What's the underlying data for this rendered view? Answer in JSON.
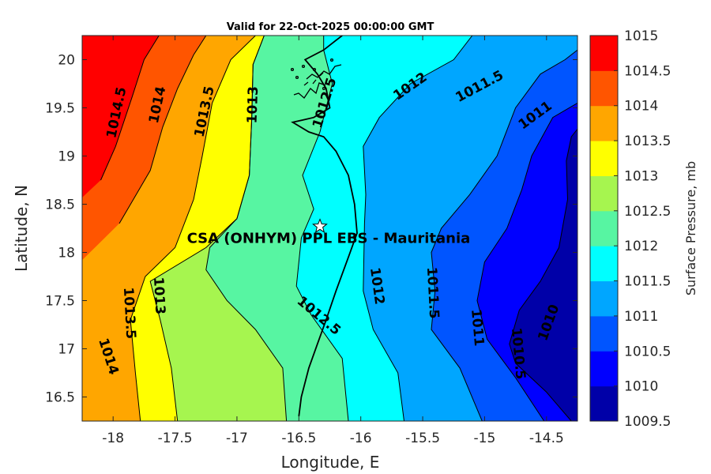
{
  "chart_data": {
    "type": "contourf",
    "title": "Valid for 22-Oct-2025 00:00:00 GMT",
    "xlabel": "Longitude, E",
    "ylabel": "Latitude, N",
    "xlim": [
      -18.25,
      -14.25
    ],
    "ylim": [
      16.25,
      20.25
    ],
    "xticks": [
      -18,
      -17.5,
      -17,
      -16.5,
      -16,
      -15.5,
      -15,
      -14.5
    ],
    "xtick_labels": [
      "-18",
      "-17.5",
      "-17",
      "-16.5",
      "-16",
      "-15.5",
      "-15",
      "-14.5"
    ],
    "yticks": [
      16.5,
      17,
      17.5,
      18,
      18.5,
      19,
      19.5,
      20
    ],
    "ytick_labels": [
      "16.5",
      "17",
      "17.5",
      "18",
      "18.5",
      "19",
      "19.5",
      "20"
    ],
    "colorbar": {
      "label": "Surface Pressure, mb",
      "levels": [
        1009.5,
        1010,
        1010.5,
        1011,
        1011.5,
        1012,
        1012.5,
        1013,
        1013.5,
        1014,
        1014.5,
        1015
      ],
      "tick_labels": [
        "1009.5",
        "1010",
        "1010.5",
        "1011",
        "1011.5",
        "1012",
        "1012.5",
        "1013",
        "1013.5",
        "1014",
        "1014.5",
        "1015"
      ],
      "colors": [
        "#0000a8",
        "#0000ff",
        "#0055ff",
        "#00a6ff",
        "#00ffff",
        "#57f5a2",
        "#a6f54f",
        "#ffff00",
        "#ffa600",
        "#ff5500",
        "#ff0000"
      ]
    },
    "contour_bands": [
      {
        "level": 1014.5,
        "color": "#ff0000",
        "boundary": [
          [
            -18.25,
            18.57
          ],
          [
            -18.1,
            18.75
          ],
          [
            -17.98,
            19.1
          ],
          [
            -17.85,
            19.6
          ],
          [
            -17.75,
            20.0
          ],
          [
            -17.63,
            20.25
          ],
          [
            -18.25,
            20.25
          ]
        ]
      },
      {
        "level": 1014,
        "color": "#ff5500",
        "boundary": [
          [
            -18.25,
            17.92
          ],
          [
            -17.95,
            18.3
          ],
          [
            -17.7,
            18.85
          ],
          [
            -17.6,
            19.3
          ],
          [
            -17.48,
            19.7
          ],
          [
            -17.35,
            20.05
          ],
          [
            -17.25,
            20.25
          ],
          [
            -18.25,
            20.25
          ]
        ]
      },
      {
        "level": 1013.5,
        "color": "#ffa600",
        "boundary": [
          [
            -17.78,
            16.25
          ],
          [
            -17.82,
            16.75
          ],
          [
            -17.86,
            17.3
          ],
          [
            -17.74,
            17.75
          ],
          [
            -17.5,
            18.05
          ],
          [
            -17.35,
            18.55
          ],
          [
            -17.28,
            19.0
          ],
          [
            -17.2,
            19.55
          ],
          [
            -17.05,
            20.0
          ],
          [
            -16.85,
            20.25
          ],
          [
            -18.25,
            20.25
          ],
          [
            -18.25,
            16.25
          ]
        ]
      },
      {
        "level": 1013,
        "color": "#ffff00",
        "boundary": [
          [
            -17.48,
            16.25
          ],
          [
            -17.53,
            16.8
          ],
          [
            -17.62,
            17.3
          ],
          [
            -17.7,
            17.7
          ],
          [
            -17.25,
            18.05
          ],
          [
            -17.0,
            18.35
          ],
          [
            -16.9,
            18.8
          ],
          [
            -16.88,
            19.4
          ],
          [
            -16.87,
            19.95
          ],
          [
            -16.78,
            20.25
          ],
          [
            -18.25,
            20.25
          ],
          [
            -18.25,
            16.25
          ]
        ]
      },
      {
        "level": 1012.5,
        "color": "#a6f54f",
        "boundary": [
          [
            -16.6,
            16.25
          ],
          [
            -16.63,
            16.8
          ],
          [
            -16.85,
            17.2
          ],
          [
            -17.08,
            17.5
          ],
          [
            -17.25,
            17.82
          ],
          [
            -17.22,
            18.05
          ],
          [
            -17.0,
            18.35
          ],
          [
            -16.9,
            18.8
          ],
          [
            -16.88,
            19.4
          ],
          [
            -16.87,
            19.95
          ],
          [
            -16.78,
            20.25
          ],
          [
            -18.25,
            20.25
          ],
          [
            -18.25,
            16.25
          ]
        ]
      },
      {
        "level": 1012,
        "color": "#57f5a2",
        "boundary": [
          [
            -16.1,
            16.25
          ],
          [
            -16.15,
            16.9
          ],
          [
            -16.4,
            17.35
          ],
          [
            -16.52,
            17.65
          ],
          [
            -16.48,
            18.15
          ],
          [
            -16.38,
            18.45
          ],
          [
            -16.47,
            18.8
          ],
          [
            -16.33,
            19.25
          ],
          [
            -16.23,
            19.75
          ],
          [
            -16.3,
            20.1
          ],
          [
            -16.3,
            20.25
          ],
          [
            -18.25,
            20.25
          ],
          [
            -18.25,
            16.25
          ]
        ]
      },
      {
        "level": 1011.5,
        "color": "#00ffff",
        "boundary": [
          [
            -15.65,
            16.25
          ],
          [
            -15.7,
            16.75
          ],
          [
            -15.9,
            17.2
          ],
          [
            -15.98,
            17.6
          ],
          [
            -15.97,
            18.3
          ],
          [
            -15.96,
            18.6
          ],
          [
            -15.98,
            19.1
          ],
          [
            -15.85,
            19.4
          ],
          [
            -15.6,
            19.75
          ],
          [
            -15.25,
            20.0
          ],
          [
            -15.1,
            20.25
          ],
          [
            -18.25,
            20.25
          ],
          [
            -18.25,
            16.25
          ]
        ]
      },
      {
        "level": 1011,
        "color": "#00a6ff",
        "boundary": [
          [
            -15.02,
            16.25
          ],
          [
            -15.2,
            16.8
          ],
          [
            -15.43,
            17.2
          ],
          [
            -15.4,
            17.6
          ],
          [
            -15.43,
            18.0
          ],
          [
            -15.35,
            18.25
          ],
          [
            -15.12,
            18.6
          ],
          [
            -14.9,
            19.0
          ],
          [
            -14.75,
            19.5
          ],
          [
            -14.55,
            19.85
          ],
          [
            -14.35,
            20.0
          ],
          [
            -14.25,
            20.1
          ],
          [
            -14.25,
            20.25
          ],
          [
            -18.25,
            20.25
          ],
          [
            -18.25,
            16.25
          ]
        ]
      },
      {
        "level": 1010.5,
        "color": "#0055ff",
        "boundary": [
          [
            -14.52,
            16.25
          ],
          [
            -14.75,
            16.7
          ],
          [
            -14.98,
            17.1
          ],
          [
            -15.06,
            17.5
          ],
          [
            -15.0,
            17.9
          ],
          [
            -14.82,
            18.25
          ],
          [
            -14.7,
            18.65
          ],
          [
            -14.62,
            19.0
          ],
          [
            -14.45,
            19.4
          ],
          [
            -14.25,
            19.55
          ],
          [
            -14.25,
            20.25
          ],
          [
            -18.25,
            20.25
          ],
          [
            -18.25,
            16.25
          ]
        ]
      },
      {
        "level": 1010,
        "color": "#0000ff",
        "boundary": [
          [
            -14.3,
            16.25
          ],
          [
            -14.5,
            16.55
          ],
          [
            -14.75,
            16.85
          ],
          [
            -14.8,
            17.05
          ],
          [
            -14.72,
            17.4
          ],
          [
            -14.55,
            17.7
          ],
          [
            -14.4,
            18.05
          ],
          [
            -14.33,
            18.55
          ],
          [
            -14.34,
            18.95
          ],
          [
            -14.3,
            19.2
          ],
          [
            -14.25,
            19.28
          ],
          [
            -14.25,
            20.25
          ],
          [
            -18.25,
            20.25
          ],
          [
            -18.25,
            16.25
          ]
        ]
      },
      {
        "level": 1009.5,
        "color": "#0000a8",
        "boundary": [
          [
            -14.25,
            16.3
          ],
          [
            -14.4,
            16.75
          ],
          [
            -14.55,
            17.05
          ],
          [
            -14.6,
            17.4
          ],
          [
            -14.45,
            17.75
          ],
          [
            -14.35,
            18.1
          ],
          [
            -14.25,
            18.25
          ],
          [
            -14.25,
            20.25
          ],
          [
            -18.25,
            20.25
          ],
          [
            -18.25,
            16.25
          ]
        ]
      }
    ],
    "contour_labels": [
      {
        "text": "1014.5",
        "lon": -17.97,
        "lat": 19.45,
        "angle": -78
      },
      {
        "text": "1014",
        "lon": -17.64,
        "lat": 19.53,
        "angle": -78
      },
      {
        "text": "1013.5",
        "lon": -17.26,
        "lat": 19.46,
        "angle": -78
      },
      {
        "text": "1013",
        "lon": -16.87,
        "lat": 19.53,
        "angle": -88
      },
      {
        "text": "1012.5",
        "lon": -16.29,
        "lat": 19.55,
        "angle": -73
      },
      {
        "text": "1012",
        "lon": -15.6,
        "lat": 19.72,
        "angle": -35
      },
      {
        "text": "1011.5",
        "lon": -15.04,
        "lat": 19.72,
        "angle": -28
      },
      {
        "text": "1011",
        "lon": -14.59,
        "lat": 19.42,
        "angle": -36
      },
      {
        "text": "1014",
        "lon": -18.04,
        "lat": 16.92,
        "angle": 72
      },
      {
        "text": "1013.5",
        "lon": -17.87,
        "lat": 17.37,
        "angle": 87
      },
      {
        "text": "1013",
        "lon": -17.63,
        "lat": 17.55,
        "angle": 87
      },
      {
        "text": "1012.5",
        "lon": -16.34,
        "lat": 17.34,
        "angle": 40
      },
      {
        "text": "1012",
        "lon": -15.87,
        "lat": 17.65,
        "angle": 82
      },
      {
        "text": "1011.5",
        "lon": -15.42,
        "lat": 17.58,
        "angle": 87
      },
      {
        "text": "1011",
        "lon": -15.06,
        "lat": 17.22,
        "angle": 85
      },
      {
        "text": "1010.5",
        "lon": -14.73,
        "lat": 16.95,
        "angle": 85
      },
      {
        "text": "1010",
        "lon": -14.48,
        "lat": 17.27,
        "angle": -70
      }
    ],
    "coastline": [
      [
        -16.5,
        16.3
      ],
      [
        -16.48,
        16.5
      ],
      [
        -16.42,
        16.8
      ],
      [
        -16.35,
        17.05
      ],
      [
        -16.28,
        17.3
      ],
      [
        -16.2,
        17.6
      ],
      [
        -16.1,
        17.95
      ],
      [
        -16.03,
        18.2
      ],
      [
        -16.05,
        18.5
      ],
      [
        -16.1,
        18.8
      ],
      [
        -16.2,
        19.05
      ],
      [
        -16.3,
        19.2
      ],
      [
        -16.42,
        19.25
      ],
      [
        -16.55,
        19.35
      ],
      [
        -16.38,
        19.4
      ],
      [
        -16.25,
        19.5
      ],
      [
        -16.28,
        19.7
      ],
      [
        -16.35,
        19.85
      ],
      [
        -16.45,
        20.0
      ],
      [
        -16.3,
        20.1
      ],
      [
        -16.2,
        20.2
      ],
      [
        -16.15,
        20.25
      ]
    ],
    "site": {
      "name": "CSA (ONHYM) PPL EBS  - Mauritania",
      "lon": -16.33,
      "lat": 18.27,
      "marker": "star"
    }
  }
}
